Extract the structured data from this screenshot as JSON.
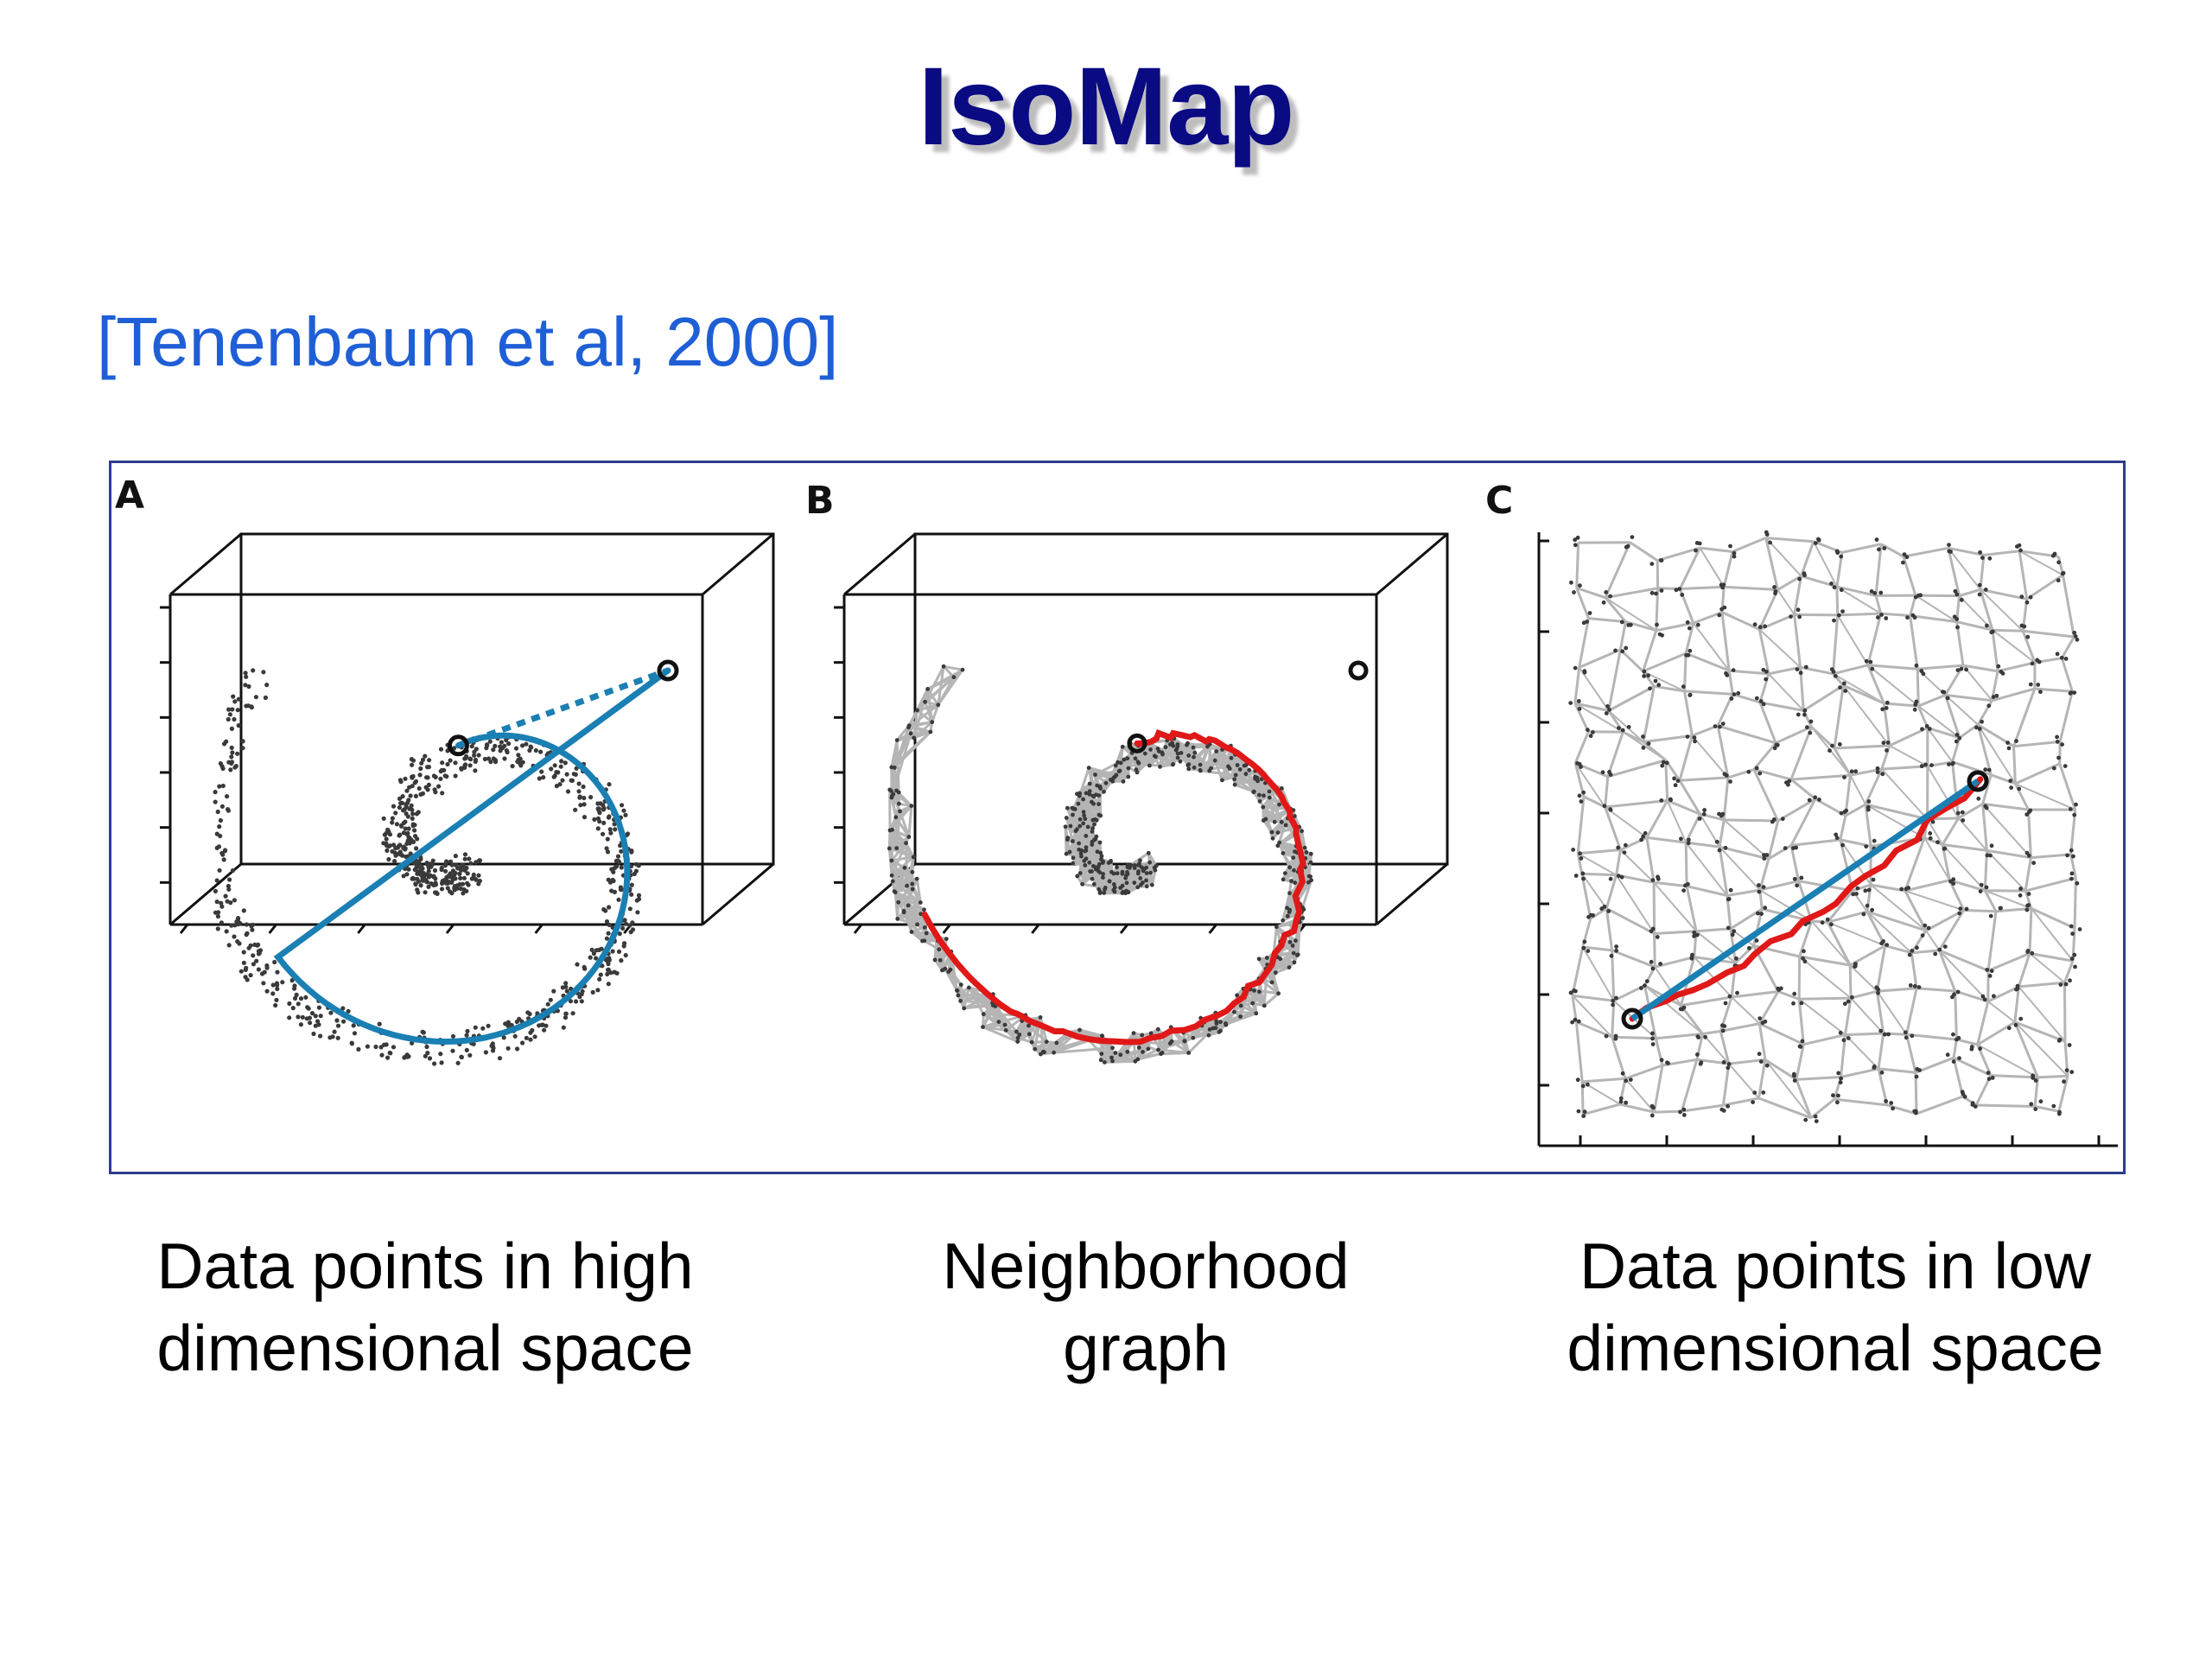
{
  "title": "IsoMap",
  "citation": "[Tenenbaum et al, 2000]",
  "panels": [
    {
      "letter": "A",
      "caption_line1": "Data points in high",
      "caption_line2": "dimensional space"
    },
    {
      "letter": "B",
      "caption_line1": "Neighborhood",
      "caption_line2": "graph"
    },
    {
      "letter": "C",
      "caption_line1": "Data points in low",
      "caption_line2": "dimensional space"
    }
  ],
  "colors": {
    "title": "#0a0a82",
    "citation": "#1f5fd6",
    "frame": "#2f3b8e",
    "points": "#3a3a3a",
    "graph_edges": "#b5b5b5",
    "geodesic_path": "#1a7fb3",
    "graph_path": "#e01818",
    "endpoint_marker": "#111111"
  },
  "icons": {
    "panel_a": "swiss-roll-scatter-3d",
    "panel_b": "swiss-roll-neighborhood-graph-3d",
    "panel_c": "unrolled-2d-embedding-graph"
  }
}
